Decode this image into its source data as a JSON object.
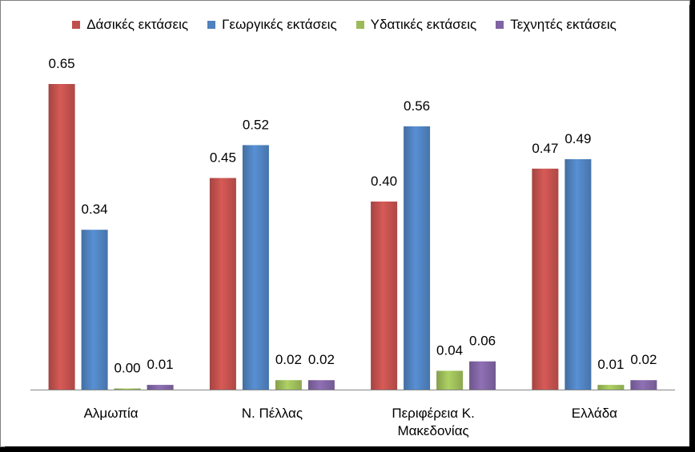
{
  "chart_data": {
    "type": "bar",
    "categories": [
      "Αλμωπία",
      "Ν. Πέλλας",
      "Περιφέρεια Κ. Μακεδονίας",
      "Ελλάδα"
    ],
    "category_lines": [
      [
        "Αλμωπία"
      ],
      [
        "Ν. Πέλλας"
      ],
      [
        "Περιφέρεια Κ.",
        "Μακεδονίας"
      ],
      [
        "Ελλάδα"
      ]
    ],
    "series": [
      {
        "name": "Δάσικές εκτάσεις",
        "values": [
          0.65,
          0.45,
          0.4,
          0.47
        ],
        "labels": [
          "0.65",
          "0.45",
          "0.40",
          "0.47"
        ],
        "color": "#c0504d"
      },
      {
        "name": "Γεωργικές εκτάσεις",
        "values": [
          0.34,
          0.52,
          0.56,
          0.49
        ],
        "labels": [
          "0.34",
          "0.52",
          "0.56",
          "0.49"
        ],
        "color": "#4f81bd"
      },
      {
        "name": "Υδατικές εκτάσεις",
        "values": [
          0.0,
          0.02,
          0.04,
          0.01
        ],
        "labels": [
          "0.00",
          "0.02",
          "0.04",
          "0.01"
        ],
        "color": "#9bbb59"
      },
      {
        "name": "Τεχνητές εκτάσεις",
        "values": [
          0.01,
          0.02,
          0.06,
          0.02
        ],
        "labels": [
          "0.01",
          "0.02",
          "0.06",
          "0.02"
        ],
        "color": "#8064a2"
      }
    ],
    "ylim": [
      0,
      0.65
    ],
    "grid": false,
    "legend_position": "top"
  }
}
